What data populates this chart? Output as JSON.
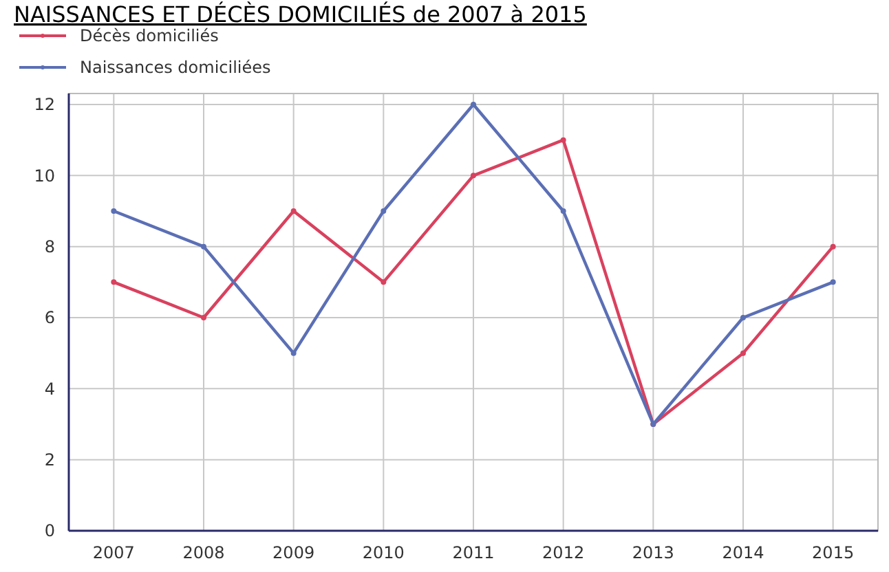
{
  "chart_data": {
    "type": "line",
    "title": "NAISSANCES ET DÉCÈS DOMICILIÉS de 2007 à 2015",
    "categories": [
      "2007",
      "2008",
      "2009",
      "2010",
      "2011",
      "2012",
      "2013",
      "2014",
      "2015"
    ],
    "series": [
      {
        "name": "Décès domiciliés",
        "color": "#d9415e",
        "values": [
          7,
          6,
          9,
          7,
          10,
          11,
          3,
          5,
          8
        ]
      },
      {
        "name": "Naissances domiciliées",
        "color": "#5b6fb5",
        "values": [
          9,
          8,
          5,
          9,
          12,
          9,
          3,
          6,
          7
        ]
      }
    ],
    "ylim": [
      0,
      12
    ],
    "yticks": [
      0,
      2,
      4,
      6,
      8,
      10,
      12
    ],
    "grid": true,
    "legend": "top left",
    "marker": "circle",
    "line_style": "solid"
  }
}
